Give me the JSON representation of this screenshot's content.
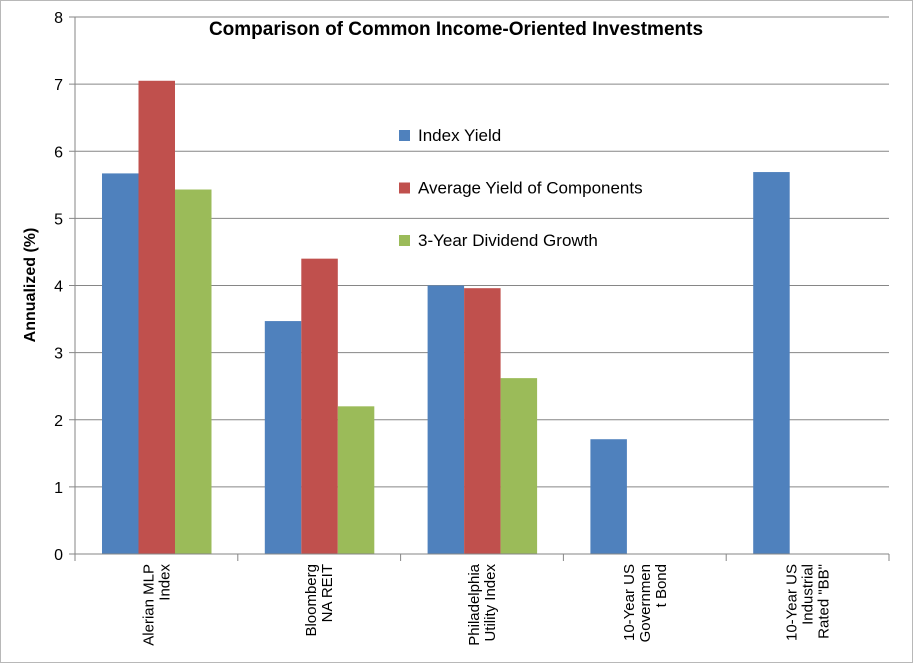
{
  "chart_data": {
    "type": "bar",
    "title": "Comparison of Common Income-Oriented Investments",
    "xlabel": "",
    "ylabel": "Annualized (%)",
    "ylim": [
      0,
      8
    ],
    "yticks": [
      0,
      1,
      2,
      3,
      4,
      5,
      6,
      7,
      8
    ],
    "grid": true,
    "legend_position": "center-top",
    "categories": [
      [
        "Alerian MLP",
        "Index"
      ],
      [
        "Bloomberg",
        "NA REIT"
      ],
      [
        "Philadelphia",
        "Utility Index"
      ],
      [
        "10-Year US",
        "Governmen",
        "t Bond"
      ],
      [
        "10-Year US",
        "Industrial",
        "Rated \"BB\""
      ]
    ],
    "series": [
      {
        "name": "Index Yield",
        "color": "#4f81bd",
        "values": [
          5.67,
          3.47,
          4.0,
          1.71,
          5.69
        ]
      },
      {
        "name": "Average Yield of Components",
        "color": "#c0504d",
        "values": [
          7.05,
          4.4,
          3.96,
          null,
          null
        ]
      },
      {
        "name": "3-Year Dividend Growth",
        "color": "#9bbb59",
        "values": [
          5.43,
          2.2,
          2.62,
          null,
          null
        ]
      }
    ]
  }
}
